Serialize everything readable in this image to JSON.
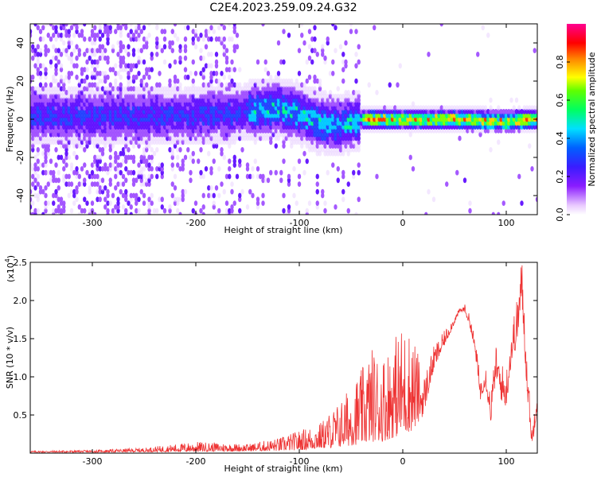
{
  "title": "C2E4.2023.259.09.24.G32",
  "colors": {
    "snr_line": "#ee3333",
    "frame": "#000000"
  },
  "chart_data": [
    {
      "type": "heatmap",
      "title": "C2E4.2023.259.09.24.G32",
      "xlabel": "Height of straight line (km)",
      "ylabel": "Frequency (Hz)",
      "xlim": [
        -360,
        130
      ],
      "ylim": [
        -50,
        50
      ],
      "x_ticks": [
        -300,
        -200,
        -100,
        0,
        100
      ],
      "y_ticks": [
        -40,
        -20,
        0,
        20,
        40
      ],
      "colorbar": {
        "label": "Normalized spectral amplitude",
        "range": [
          0,
          1
        ],
        "ticks": [
          "0.0",
          "0.2",
          "0.4",
          "0.6",
          "0.8"
        ],
        "colormap": "rainbow (white-violet-blue-cyan-green-yellow-red-magenta)"
      },
      "ridge": [
        {
          "x": -250,
          "f": 2
        },
        {
          "x": -200,
          "f": 2
        },
        {
          "x": -150,
          "f": 4
        },
        {
          "x": -120,
          "f": 6
        },
        {
          "x": -100,
          "f": 3
        },
        {
          "x": -80,
          "f": -2
        },
        {
          "x": -60,
          "f": -3
        },
        {
          "x": -40,
          "f": 0
        },
        {
          "x": 0,
          "f": 0
        },
        {
          "x": 50,
          "f": 0
        },
        {
          "x": 100,
          "f": -1
        },
        {
          "x": 130,
          "f": 0
        }
      ]
    },
    {
      "type": "line",
      "xlabel": "Height of straight line (km)",
      "ylabel": "SNR (10 * v/v)",
      "y_multiplier": "(x10",
      "y_multiplier_exp": "4",
      "y_multiplier_close": ")",
      "xlim": [
        -360,
        130
      ],
      "ylim": [
        0,
        25000
      ],
      "x_ticks": [
        -300,
        -200,
        -100,
        0,
        100
      ],
      "y_ticks": [
        "0.5",
        "1.0",
        "1.5",
        "2.0",
        "2.5"
      ],
      "envelope": {
        "x": [
          -360,
          -300,
          -250,
          -200,
          -150,
          -120,
          -100,
          -80,
          -60,
          -50,
          -40,
          -30,
          -20,
          -10,
          0,
          10,
          20,
          30,
          40,
          50,
          55,
          60,
          65,
          70,
          75,
          80,
          85,
          90,
          95,
          100,
          105,
          110,
          115,
          120,
          125,
          130
        ],
        "y": [
          300,
          400,
          700,
          1500,
          1200,
          2000,
          3000,
          4000,
          7000,
          9000,
          11000,
          14000,
          13000,
          15000,
          17000,
          16000,
          10000,
          14000,
          16000,
          18000,
          19000,
          19500,
          18000,
          15000,
          10000,
          12000,
          8000,
          14000,
          12000,
          11000,
          17000,
          20000,
          26000,
          13000,
          3000,
          12000
        ]
      },
      "baseline": {
        "x": [
          -360,
          -300,
          -250,
          -200,
          -150,
          -120,
          -100,
          -80,
          -60,
          -50,
          -40,
          -30,
          -20,
          -10,
          0,
          10,
          20,
          30,
          40,
          50,
          55,
          60,
          65,
          70,
          75,
          80,
          85,
          90,
          95,
          100,
          105,
          110,
          115,
          120,
          125,
          130
        ],
        "y": [
          100,
          100,
          150,
          200,
          250,
          300,
          400,
          600,
          800,
          1000,
          1200,
          1500,
          1500,
          2000,
          2500,
          3000,
          5000,
          11000,
          14000,
          17000,
          18500,
          18500,
          16500,
          13000,
          7000,
          9000,
          4000,
          10000,
          7000,
          6000,
          12000,
          14000,
          20000,
          8000,
          500,
          6000
        ]
      }
    }
  ]
}
